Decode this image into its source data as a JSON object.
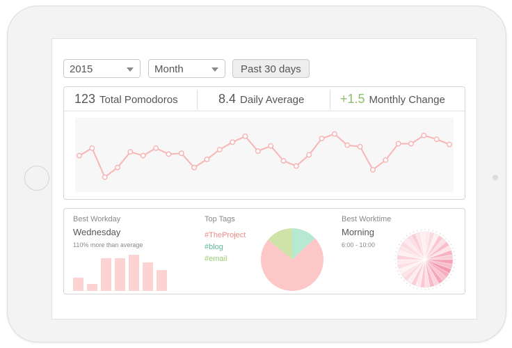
{
  "filters": {
    "year": "2015",
    "period": "Month",
    "range_button": "Past 30 days"
  },
  "stats": [
    {
      "value": "123",
      "label": "Total Pomodoros"
    },
    {
      "value": "8.4",
      "label": "Daily Average"
    },
    {
      "value": "+1.5",
      "label": "Monthly Change"
    }
  ],
  "colors": {
    "line": "#f7b5b5",
    "positive": "#8dbe6b",
    "bar": "#fcd3d3",
    "tag_project": "#f08a8a",
    "tag_blog": "#5fb99b",
    "tag_email": "#9ccf7a",
    "pie_project": "#fdc7c7",
    "pie_blog": "#b6e8d2",
    "pie_email": "#cfe3a9"
  },
  "best_workday": {
    "title": "Best Workday",
    "day": "Wednesday",
    "note": "110% more than average",
    "bars": [
      0.35,
      0.18,
      0.85,
      0.85,
      0.95,
      0.75,
      0.55
    ]
  },
  "top_tags": {
    "title": "Top Tags",
    "tags": [
      "#TheProject",
      "#blog",
      "#email"
    ],
    "shares": [
      0.73,
      0.13,
      0.14
    ]
  },
  "best_worktime": {
    "title": "Best Worktime",
    "label": "Morning",
    "range": "6:00 - 10:00"
  },
  "chart_data": {
    "type": "line",
    "x": [
      1,
      2,
      3,
      4,
      5,
      6,
      7,
      8,
      9,
      10,
      11,
      12,
      13,
      14,
      15,
      16,
      17,
      18,
      19,
      20,
      21,
      22,
      23,
      24,
      25,
      26,
      27,
      28,
      29,
      30
    ],
    "values": [
      4.9,
      5.9,
      2.0,
      3.3,
      5.4,
      4.9,
      5.9,
      5.1,
      5.2,
      3.3,
      4.4,
      5.7,
      6.7,
      7.5,
      5.5,
      6.2,
      4.2,
      3.5,
      5.0,
      7.2,
      7.8,
      6.3,
      6.1,
      3.0,
      4.3,
      6.5,
      6.5,
      7.6,
      7.1,
      6.4
    ],
    "ylim": [
      0,
      10
    ]
  }
}
